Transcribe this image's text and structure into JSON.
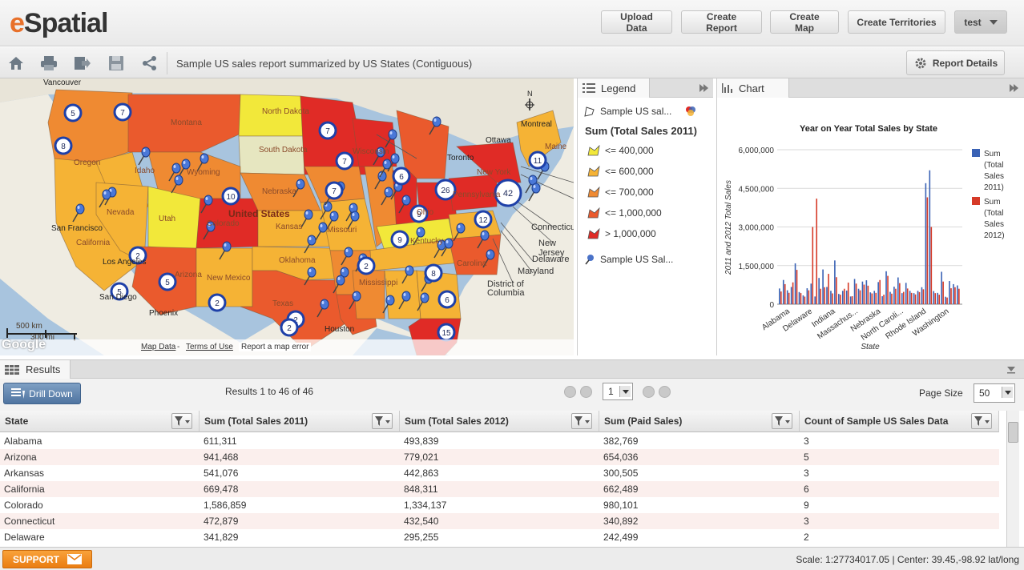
{
  "app": {
    "logo_e": "e",
    "logo_rest": "Spatial"
  },
  "header": {
    "buttons": [
      "Upload Data",
      "Create Report",
      "Create Map",
      "Create Territories"
    ],
    "user": "test"
  },
  "toolbar": {
    "report_title": "Sample US sales report summarized by US States (Contiguous)",
    "details": "Report Details",
    "icons": [
      "home-icon",
      "print-icon",
      "export-icon",
      "save-icon",
      "share-icon"
    ]
  },
  "map": {
    "labels": [
      {
        "t": "Vancouver",
        "c": "city"
      },
      {
        "t": "North Dakota",
        "c": "state"
      },
      {
        "t": "South Dakota",
        "c": "state"
      },
      {
        "t": "Montana",
        "c": "state"
      },
      {
        "t": "Oregon",
        "c": "state"
      },
      {
        "t": "Idaho",
        "c": "state"
      },
      {
        "t": "Wyoming",
        "c": "state"
      },
      {
        "t": "Nevada",
        "c": "state"
      },
      {
        "t": "Utah",
        "c": "state"
      },
      {
        "t": "Colorado",
        "c": "state"
      },
      {
        "t": "United States",
        "c": "country"
      },
      {
        "t": "California",
        "c": "state"
      },
      {
        "t": "San Francisco",
        "c": "city"
      },
      {
        "t": "Los Angeles",
        "c": "city"
      },
      {
        "t": "San Diego",
        "c": "city"
      },
      {
        "t": "Arizona",
        "c": "state"
      },
      {
        "t": "Phoenix",
        "c": "city"
      },
      {
        "t": "New Mexico",
        "c": "state"
      },
      {
        "t": "Texas",
        "c": "state"
      },
      {
        "t": "Houston",
        "c": "city"
      },
      {
        "t": "Oklahoma",
        "c": "state"
      },
      {
        "t": "Kansas",
        "c": "state"
      },
      {
        "t": "Nebraska",
        "c": "state"
      },
      {
        "t": "Missouri",
        "c": "state"
      },
      {
        "t": "Wisconsin",
        "c": "state"
      },
      {
        "t": "Ohio",
        "c": "state"
      },
      {
        "t": "Kentucky",
        "c": "state"
      },
      {
        "t": "Carolina",
        "c": "state"
      },
      {
        "t": "Mississippi",
        "c": "state"
      },
      {
        "t": "Toronto",
        "c": "city"
      },
      {
        "t": "Ottawa",
        "c": "city"
      },
      {
        "t": "Montreal",
        "c": "city"
      },
      {
        "t": "Maine",
        "c": "state"
      },
      {
        "t": "New York",
        "c": "state"
      },
      {
        "t": "Pennsylvania",
        "c": "state"
      },
      {
        "t": "Connecticut",
        "c": "callout"
      },
      {
        "t": "New Jersey",
        "c": "callout"
      },
      {
        "t": "Delaware",
        "c": "callout"
      },
      {
        "t": "Maryland",
        "c": "callout"
      },
      {
        "t": "District of Columbia",
        "c": "callout"
      }
    ],
    "clusters": [
      "5",
      "7",
      "8",
      "7",
      "7",
      "10",
      "7",
      "6",
      "26",
      "42",
      "11",
      "9",
      "12",
      "9",
      "2",
      "8",
      "2",
      "5",
      "5",
      "2",
      "2",
      "2",
      "6",
      "15"
    ],
    "scale_km": "500 km",
    "scale_mi": "300 mi",
    "google": "Google",
    "map_data": "Map Data",
    "dash": " - ",
    "terms": "Terms of Use",
    "report_error": "Report a map error"
  },
  "legend": {
    "tab": "Legend",
    "layer1": "Sample US sal...",
    "heading": "Sum (Total Sales 2011)",
    "ranges": [
      {
        "label": "<= 400,000",
        "color": "#f2e83a"
      },
      {
        "label": "<= 600,000",
        "color": "#f5b335"
      },
      {
        "label": "<= 700,000",
        "color": "#ef8a32"
      },
      {
        "label": "<= 1,000,000",
        "color": "#ea5a2d"
      },
      {
        "label": "> 1,000,000",
        "color": "#e02b26"
      }
    ],
    "layer2": "Sample US Sal..."
  },
  "chart_panel": {
    "tab": "Chart"
  },
  "chart_data": {
    "type": "bar",
    "title": "Year on Year Total Sales by State",
    "xlabel": "State",
    "ylabel": "2011 and 2012 Total Sales",
    "ylim": [
      0,
      6000000
    ],
    "yticks": [
      "0",
      "1,500,000",
      "3,000,000",
      "4,500,000",
      "6,000,000"
    ],
    "xtick_labels": [
      "Alabama",
      "Delaware",
      "Indiana",
      "Massachus...",
      "Nebraska",
      "North Caroli...",
      "Rhode Island",
      "Washington"
    ],
    "legend_position": "right",
    "series": [
      {
        "name": "Sum (Total Sales 2011)",
        "color": "#3a62b5",
        "values": [
          611311,
          941468,
          541076,
          669478,
          1586859,
          472879,
          341829,
          620000,
          800000,
          300000,
          1020000,
          1350000,
          670000,
          520000,
          1700000,
          400000,
          520000,
          530000,
          300000,
          980000,
          600000,
          880000,
          930000,
          460000,
          520000,
          860000,
          310000,
          1280000,
          480000,
          680000,
          1040000,
          430000,
          830000,
          520000,
          430000,
          520000,
          660000,
          4700000,
          5200000,
          510000,
          440000,
          1260000,
          290000,
          900000,
          780000,
          730000
        ]
      },
      {
        "name": "Sum (Total Sales 2012)",
        "color": "#d63a28",
        "values": [
          493839,
          779021,
          442863,
          848311,
          1334137,
          432540,
          295255,
          540000,
          3000000,
          4100000,
          600000,
          660000,
          1180000,
          420000,
          1050000,
          370000,
          600000,
          840000,
          310000,
          800000,
          540000,
          760000,
          720000,
          420000,
          440000,
          940000,
          370000,
          1100000,
          410000,
          600000,
          820000,
          480000,
          610000,
          440000,
          380000,
          470000,
          580000,
          4150000,
          3000000,
          430000,
          370000,
          880000,
          260000,
          620000,
          660000,
          600000
        ]
      }
    ]
  },
  "results": {
    "tab": "Results",
    "drill": "Drill Down",
    "count_text": "Results 1 to 46 of 46",
    "page": "1",
    "page_size_label": "Page Size",
    "page_size": "50",
    "columns": [
      "State",
      "Sum (Total Sales 2011)",
      "Sum (Total Sales 2012)",
      "Sum (Paid Sales)",
      "Count of Sample US Sales Data"
    ],
    "rows": [
      [
        "Alabama",
        "611,311",
        "493,839",
        "382,769",
        "3"
      ],
      [
        "Arizona",
        "941,468",
        "779,021",
        "654,036",
        "5"
      ],
      [
        "Arkansas",
        "541,076",
        "442,863",
        "300,505",
        "3"
      ],
      [
        "California",
        "669,478",
        "848,311",
        "662,489",
        "6"
      ],
      [
        "Colorado",
        "1,586,859",
        "1,334,137",
        "980,101",
        "9"
      ],
      [
        "Connecticut",
        "472,879",
        "432,540",
        "340,892",
        "3"
      ],
      [
        "Delaware",
        "341,829",
        "295,255",
        "242,499",
        "2"
      ]
    ]
  },
  "status": {
    "support": "SUPPORT",
    "scale": "Scale: 1:27734017.05 | Center: 39.45,-98.92 lat/long"
  }
}
